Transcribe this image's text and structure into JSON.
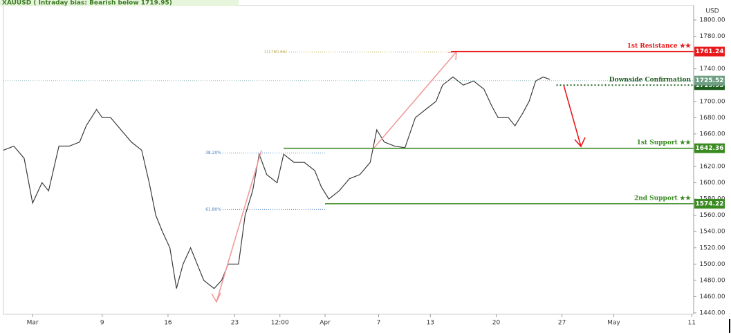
{
  "chart_data": {
    "type": "line",
    "title": "XAUUSD ( Intraday bias: Bearish below 1719.95)",
    "axis_unit": "USD",
    "series": [
      {
        "name": "XAUUSD",
        "color": "#3a3a3a",
        "x": [
          -1.1,
          0.0,
          1.1,
          2.0,
          3.0,
          3.7,
          4.8,
          5.9,
          7.0,
          7.7,
          8.8,
          9.4,
          10.3,
          11.4,
          12.5,
          13.6,
          14.4,
          15.1,
          15.8,
          16.6,
          17.3,
          18.0,
          18.8,
          19.5,
          20.2,
          21.3,
          22.1,
          22.8,
          23.9,
          24.6,
          25.4,
          26.1,
          26.9,
          28.0,
          28.7,
          29.8,
          30.9,
          32.0,
          32.7,
          33.5,
          34.6,
          35.7,
          36.8,
          37.9,
          38.6,
          39.4,
          40.5,
          41.6,
          42.7,
          43.8,
          44.9,
          45.6,
          46.7,
          47.8,
          48.9,
          50.0,
          50.8,
          51.5,
          52.6,
          53.3,
          54.1,
          54.8,
          55.5,
          56.3,
          57.0
        ],
        "values": [
          1640,
          1645,
          1630,
          1575,
          1600,
          1590,
          1645,
          1645,
          1650,
          1670,
          1690,
          1680,
          1680,
          1665,
          1650,
          1640,
          1600,
          1560,
          1540,
          1520,
          1470,
          1500,
          1520,
          1500,
          1480,
          1470,
          1480,
          1500,
          1500,
          1560,
          1590,
          1635,
          1610,
          1600,
          1635,
          1625,
          1625,
          1615,
          1595,
          1580,
          1590,
          1605,
          1610,
          1625,
          1665,
          1650,
          1645,
          1643,
          1680,
          1690,
          1700,
          1720,
          1730,
          1720,
          1725,
          1715,
          1695,
          1680,
          1680,
          1670,
          1685,
          1700,
          1725,
          1730,
          1727
        ]
      }
    ],
    "xlim": [
      -1.1,
      72.3
    ],
    "xticks": [
      {
        "value": 2.0,
        "label": "Mar"
      },
      {
        "value": 9.4,
        "label": "9"
      },
      {
        "value": 16.4,
        "label": "16"
      },
      {
        "value": 23.5,
        "label": "23"
      },
      {
        "value": 28.3,
        "label": "12:00"
      },
      {
        "value": 33.1,
        "label": "Apr"
      },
      {
        "value": 38.8,
        "label": "7"
      },
      {
        "value": 44.3,
        "label": "13"
      },
      {
        "value": 51.3,
        "label": "20"
      },
      {
        "value": 58.3,
        "label": "27"
      },
      {
        "value": 63.8,
        "label": "May"
      },
      {
        "value": 72.1,
        "label": "11"
      }
    ],
    "ylim": [
      1438.3,
      1817.8
    ],
    "yticks": [
      {
        "value": 1440,
        "label": "1440.00"
      },
      {
        "value": 1460,
        "label": "1460.00"
      },
      {
        "value": 1480,
        "label": "1480.00"
      },
      {
        "value": 1500,
        "label": "1500.00"
      },
      {
        "value": 1520,
        "label": "1520.00"
      },
      {
        "value": 1540,
        "label": "1540.00"
      },
      {
        "value": 1560,
        "label": "1560.00"
      },
      {
        "value": 1580,
        "label": "1580.00"
      },
      {
        "value": 1600,
        "label": "1600.00"
      },
      {
        "value": 1620,
        "label": "1620.00"
      },
      {
        "value": 1640,
        "label": "1640.00"
      },
      {
        "value": 1660,
        "label": "1660.00"
      },
      {
        "value": 1680,
        "label": "1680.00"
      },
      {
        "value": 1700,
        "label": "1700.00"
      },
      {
        "value": 1720,
        "label": "1720.00"
      },
      {
        "value": 1740,
        "label": "1740.00"
      },
      {
        "value": 1760,
        "label": "1760.00"
      },
      {
        "value": 1780,
        "label": "1780.00"
      },
      {
        "value": 1800,
        "label": "1800.00"
      }
    ],
    "levels": [
      {
        "label": "1st Resistance ★★",
        "value": 1761.24,
        "start": 46.5,
        "color": "#e8191b",
        "dotted": false
      },
      {
        "label": "Downside Confirmation",
        "value": 1719.95,
        "start": 57.7,
        "color": "#1e5e1e",
        "dotted": true
      },
      {
        "label": "1st Support ★★",
        "value": 1642.36,
        "start": 28.7,
        "color": "#3a8a22",
        "dotted": false
      },
      {
        "label": "2nd Support ★★",
        "value": 1574.22,
        "start": 33.1,
        "color": "#3a8a22",
        "dotted": false
      }
    ],
    "current_price": 1725.52,
    "fib": [
      {
        "label": "1(1760.66)",
        "value": 1760.66,
        "color": "#b9a84a"
      },
      {
        "label": "38.20%",
        "value": 1636.5,
        "color": "#4a7fc0"
      },
      {
        "label": "61.80%",
        "value": 1567.0,
        "color": "#4a7fc0"
      }
    ]
  }
}
